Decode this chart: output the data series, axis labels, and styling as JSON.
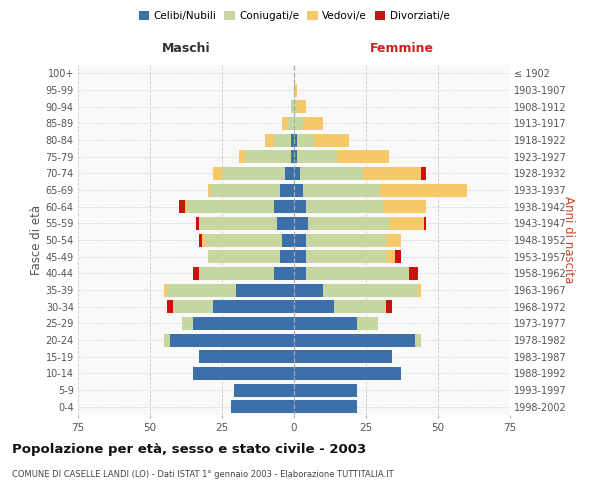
{
  "age_groups": [
    "0-4",
    "5-9",
    "10-14",
    "15-19",
    "20-24",
    "25-29",
    "30-34",
    "35-39",
    "40-44",
    "45-49",
    "50-54",
    "55-59",
    "60-64",
    "65-69",
    "70-74",
    "75-79",
    "80-84",
    "85-89",
    "90-94",
    "95-99",
    "100+"
  ],
  "birth_years": [
    "1998-2002",
    "1993-1997",
    "1988-1992",
    "1983-1987",
    "1978-1982",
    "1973-1977",
    "1968-1972",
    "1963-1967",
    "1958-1962",
    "1953-1957",
    "1948-1952",
    "1943-1947",
    "1938-1942",
    "1933-1937",
    "1928-1932",
    "1923-1927",
    "1918-1922",
    "1913-1917",
    "1908-1912",
    "1903-1907",
    "≤ 1902"
  ],
  "colors": {
    "celibi": "#3d6fa8",
    "coniugati": "#c5d6a0",
    "vedovi": "#f5c96a",
    "divorziati": "#cc1111"
  },
  "males": {
    "celibi": [
      22,
      21,
      35,
      33,
      43,
      35,
      28,
      20,
      7,
      5,
      4,
      6,
      7,
      5,
      3,
      1,
      1,
      0,
      0,
      0,
      0
    ],
    "coniugati": [
      0,
      0,
      0,
      0,
      2,
      4,
      14,
      24,
      26,
      25,
      27,
      27,
      30,
      24,
      22,
      16,
      6,
      2,
      1,
      0,
      0
    ],
    "vedovi": [
      0,
      0,
      0,
      0,
      0,
      0,
      0,
      1,
      0,
      0,
      1,
      0,
      1,
      1,
      3,
      2,
      3,
      2,
      0,
      0,
      0
    ],
    "divorziati": [
      0,
      0,
      0,
      0,
      0,
      0,
      2,
      0,
      2,
      0,
      1,
      1,
      2,
      0,
      0,
      0,
      0,
      0,
      0,
      0,
      0
    ]
  },
  "females": {
    "celibi": [
      22,
      22,
      37,
      34,
      42,
      22,
      14,
      10,
      4,
      4,
      4,
      5,
      4,
      3,
      2,
      1,
      1,
      0,
      0,
      0,
      0
    ],
    "coniugati": [
      0,
      0,
      0,
      0,
      2,
      7,
      18,
      33,
      36,
      28,
      28,
      28,
      27,
      27,
      22,
      14,
      6,
      3,
      1,
      0,
      0
    ],
    "vedovi": [
      0,
      0,
      0,
      0,
      0,
      0,
      0,
      1,
      0,
      3,
      5,
      12,
      15,
      30,
      20,
      18,
      12,
      7,
      3,
      1,
      0
    ],
    "divorziati": [
      0,
      0,
      0,
      0,
      0,
      0,
      2,
      0,
      3,
      2,
      0,
      1,
      0,
      0,
      2,
      0,
      0,
      0,
      0,
      0,
      0
    ]
  },
  "title": "Popolazione per età, sesso e stato civile - 2003",
  "subtitle": "COMUNE DI CASELLE LANDI (LO) - Dati ISTAT 1° gennaio 2003 - Elaborazione TUTTITALIA.IT",
  "xlabel_left": "Maschi",
  "xlabel_right": "Femmine",
  "ylabel_left": "Fasce di età",
  "ylabel_right": "Anni di nascita",
  "legend_labels": [
    "Celibi/Nubili",
    "Coniugati/e",
    "Vedovi/e",
    "Divorziati/e"
  ],
  "xlim": 75,
  "background_color": "#ffffff"
}
